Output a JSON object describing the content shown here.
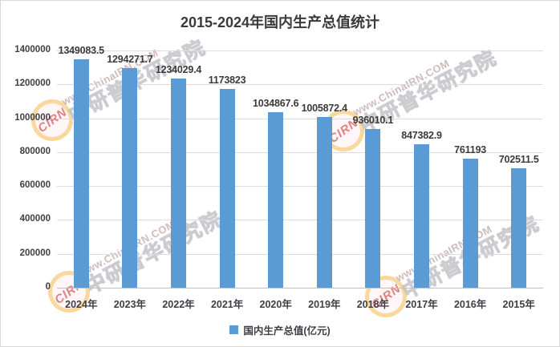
{
  "chart_data": {
    "type": "bar",
    "title": "2015-2024年国内生产总值统计",
    "categories": [
      "2024年",
      "2023年",
      "2022年",
      "2021年",
      "2020年",
      "2019年",
      "2018年",
      "2017年",
      "2016年",
      "2015年"
    ],
    "values": [
      1349083.5,
      1294271.7,
      1234029.4,
      1173823,
      1034867.6,
      1005872.4,
      936010.1,
      847382.9,
      761193,
      702511.5
    ],
    "value_labels": [
      "1349083.5",
      "1294271.7",
      "1234029.4",
      "1173823",
      "1034867.6",
      "1005872.4",
      "936010.1",
      "847382.9",
      "761193",
      "702511.5"
    ],
    "series_name": "国内生产总值(亿元)",
    "ylabel": "",
    "xlabel": "",
    "y_ticks": [
      "0",
      "200000",
      "400000",
      "600000",
      "800000",
      "1000000",
      "1200000",
      "1400000"
    ],
    "ylim": [
      0,
      1400000
    ],
    "grid": true,
    "legend_position": "bottom",
    "bar_color": "#5b9bd5"
  },
  "legend": {
    "label": "国内生产总值(亿元)",
    "swatch_color": "#5b9bd5"
  },
  "watermark": {
    "url_text": "www.ChinaIRN.COM",
    "brand_text": "中研普华研究院",
    "logo_text": "CIRN"
  }
}
